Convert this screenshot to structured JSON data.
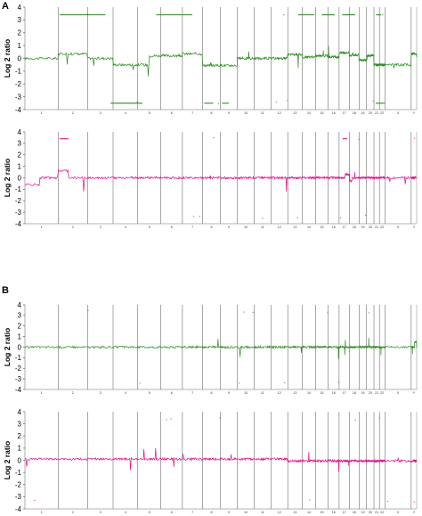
{
  "panel_labels": [
    "A",
    "B"
  ],
  "colors": {
    "green": "#2e8b22",
    "magenta": "#e0108c",
    "divider": "#6e6e6e",
    "frame": "#9a9a9a"
  },
  "chart_data": [
    {
      "type": "line",
      "ylabel": "Log 2 ratio",
      "ylim": [
        -4,
        4
      ],
      "yticks": [
        "4",
        "3",
        "2",
        "1",
        "0",
        "-1",
        "-2",
        "-3",
        "-4"
      ],
      "chromosomes": [
        "1",
        "2",
        "3",
        "4",
        "5",
        "6",
        "7",
        "8",
        "9",
        "10",
        "11",
        "12",
        "13",
        "14",
        "15",
        "16",
        "17",
        "18",
        "19",
        "20",
        "21",
        "22",
        "X",
        "Y"
      ],
      "series": [
        {
          "color": "green",
          "segments": [
            [
              0.05,
              0.0
            ],
            [
              1,
              0.35
            ],
            [
              2,
              0.0
            ],
            [
              3,
              -0.5
            ],
            [
              4.5,
              0.2
            ],
            [
              6,
              0.35
            ],
            [
              7,
              -0.55
            ],
            [
              8,
              -0.55
            ],
            [
              9,
              0.0
            ],
            [
              12,
              0.3
            ],
            [
              13,
              0.1
            ],
            [
              14,
              0.2
            ],
            [
              15,
              0.1
            ],
            [
              16,
              0.45
            ],
            [
              17,
              0.25
            ],
            [
              18,
              -0.15
            ],
            [
              19,
              0.2
            ],
            [
              20,
              -0.5
            ],
            [
              22,
              -0.5
            ],
            [
              23,
              0.35
            ],
            [
              24,
              0.0
            ]
          ]
        }
      ],
      "amp_lines": [
        [
          1.05,
          2.7,
          3.4
        ],
        [
          4.8,
          6.5,
          3.4
        ],
        [
          12.7,
          13.9,
          3.4
        ],
        [
          14.5,
          15.6,
          3.4
        ],
        [
          16.3,
          17.6,
          3.4
        ],
        [
          20.4,
          21.3,
          3.4
        ],
        [
          2.9,
          4.2,
          -3.5
        ],
        [
          7.1,
          7.6,
          -3.5
        ],
        [
          8.1,
          8.5,
          -3.5
        ],
        [
          20.3,
          22.0,
          -3.5
        ]
      ]
    },
    {
      "type": "line",
      "ylabel": "Log 2 ratio",
      "ylim": [
        -4,
        4
      ],
      "yticks": [
        "4",
        "3",
        "2",
        "1",
        "0",
        "-1",
        "-2",
        "-3",
        "-4"
      ],
      "chromosomes": [
        "1",
        "2",
        "3",
        "4",
        "5",
        "6",
        "7",
        "8",
        "9",
        "10",
        "11",
        "12",
        "13",
        "14",
        "15",
        "16",
        "17",
        "18",
        "19",
        "20",
        "21",
        "22",
        "X",
        "Y"
      ],
      "series": [
        {
          "color": "magenta",
          "segments": [
            [
              0,
              -0.6
            ],
            [
              0.45,
              0.0
            ],
            [
              1.0,
              0.6
            ],
            [
              1.35,
              0.0
            ],
            [
              16.6,
              0.3
            ],
            [
              17.05,
              -0.3
            ],
            [
              17.3,
              0.0
            ],
            [
              24,
              0.0
            ]
          ]
        }
      ],
      "amp_lines": [
        [
          1.05,
          1.35,
          3.4
        ],
        [
          16.35,
          16.8,
          3.4
        ]
      ]
    },
    {
      "type": "line",
      "ylabel": "Log 2 ratio",
      "ylim": [
        -4,
        4
      ],
      "yticks": [
        "4",
        "3",
        "2",
        "1",
        "0",
        "-1",
        "-2",
        "-3",
        "-4"
      ],
      "chromosomes": [
        "1",
        "2",
        "3",
        "4",
        "5",
        "6",
        "7",
        "8",
        "9",
        "10",
        "11",
        "12",
        "13",
        "14",
        "15",
        "16",
        "17",
        "18",
        "19",
        "20",
        "21",
        "22",
        "X",
        "Y"
      ],
      "series": [
        {
          "color": "green",
          "segments": [
            [
              0,
              0.0
            ],
            [
              23.6,
              0.5
            ],
            [
              24,
              0.0
            ]
          ]
        }
      ],
      "amp_lines": []
    },
    {
      "type": "line",
      "ylabel": "Log 2 ratio",
      "ylim": [
        -4,
        4
      ],
      "yticks": [
        "4",
        "3",
        "2",
        "1",
        "0",
        "-1",
        "-2",
        "-3",
        "-4"
      ],
      "chromosomes": [
        "1",
        "2",
        "3",
        "4",
        "5",
        "6",
        "7",
        "8",
        "9",
        "10",
        "11",
        "12",
        "13",
        "14",
        "15",
        "16",
        "17",
        "18",
        "19",
        "20",
        "21",
        "22",
        "X",
        "Y"
      ],
      "series": [
        {
          "color": "magenta",
          "segments": [
            [
              0,
              0.1
            ],
            [
              12,
              -0.05
            ],
            [
              24,
              -0.15
            ]
          ]
        }
      ],
      "amp_lines": []
    }
  ]
}
